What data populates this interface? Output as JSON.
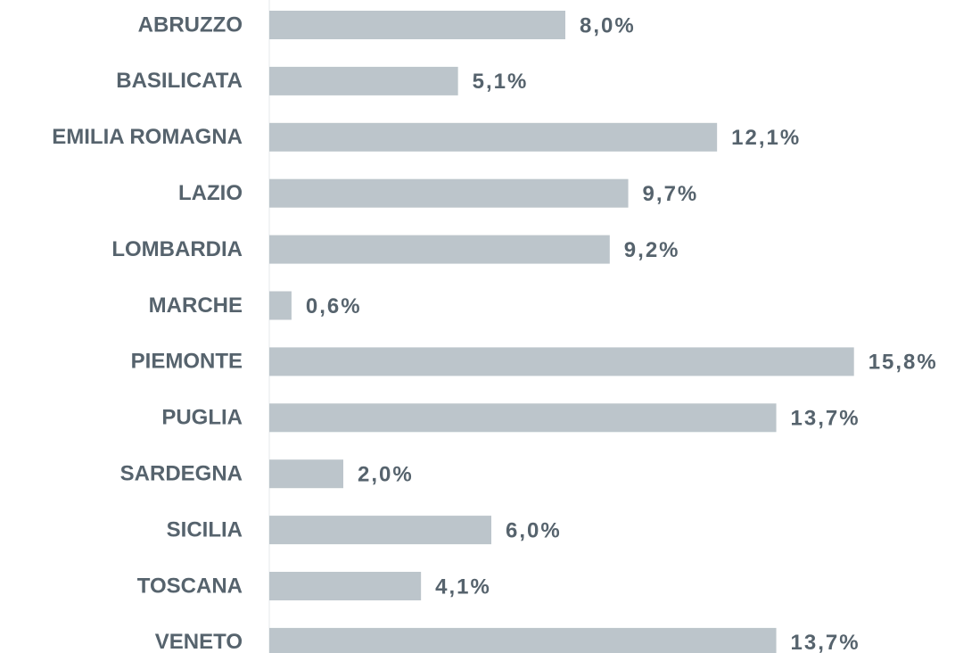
{
  "chart_data": {
    "type": "bar",
    "orientation": "horizontal",
    "categories": [
      "ABRUZZO",
      "BASILICATA",
      "EMILIA ROMAGNA",
      "LAZIO",
      "LOMBARDIA",
      "MARCHE",
      "PIEMONTE",
      "PUGLIA",
      "SARDEGNA",
      "SICILIA",
      "TOSCANA",
      "VENETO"
    ],
    "values": [
      8.0,
      5.1,
      12.1,
      9.7,
      9.2,
      0.6,
      15.8,
      13.7,
      2.0,
      6.0,
      4.1,
      13.7
    ],
    "value_labels": [
      "8,0%",
      "5,1%",
      "12,1%",
      "9,7%",
      "9,2%",
      "0,6%",
      "15,8%",
      "13,7%",
      "2,0%",
      "6,0%",
      "4,1%",
      "13,7%"
    ],
    "color": "#bcc5cb"
  }
}
